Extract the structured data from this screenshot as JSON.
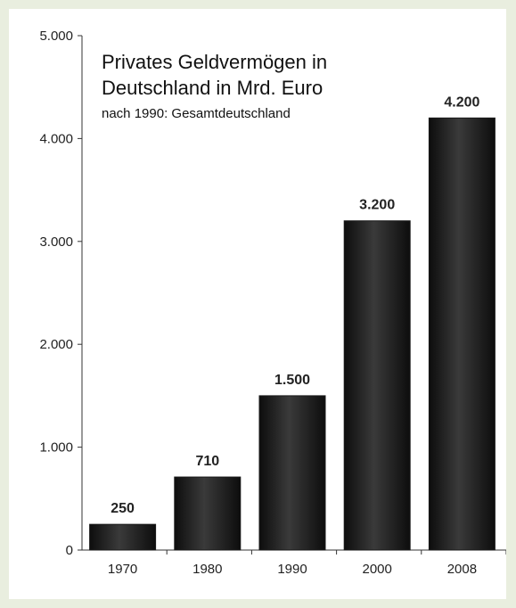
{
  "chart_data": {
    "type": "bar",
    "title_lines": [
      "Privates Geldvermögen in",
      "Deutschland in Mrd. Euro"
    ],
    "subtitle": "nach 1990: Gesamtdeutschland",
    "categories": [
      "1970",
      "1980",
      "1990",
      "2000",
      "2008"
    ],
    "values": [
      250,
      710,
      1500,
      3200,
      4200
    ],
    "value_labels": [
      "250",
      "710",
      "1.500",
      "3.200",
      "4.200"
    ],
    "yticks": [
      0,
      1000,
      2000,
      3000,
      4000,
      5000
    ],
    "ytick_labels": [
      "0",
      "1.000",
      "2.000",
      "3.000",
      "4.000",
      "5.000"
    ],
    "ylim": [
      0,
      5000
    ],
    "grid": false,
    "bar_color": "#1a1a1a"
  }
}
